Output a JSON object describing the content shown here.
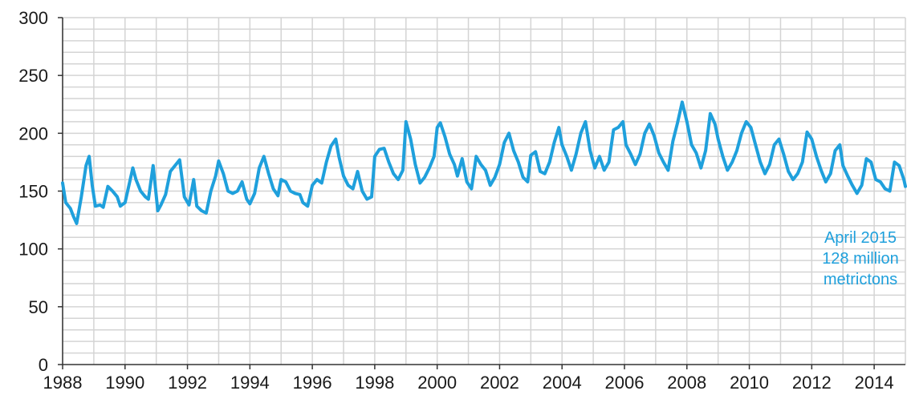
{
  "chart_data": {
    "type": "line",
    "title": "",
    "xlabel": "",
    "ylabel": "",
    "xlim": [
      1988,
      2015.0
    ],
    "ylim": [
      0,
      300
    ],
    "x_tick_labels": [
      "1988",
      "1990",
      "1992",
      "1994",
      "1996",
      "1998",
      "2000",
      "2002",
      "2004",
      "2006",
      "2008",
      "2010",
      "2012",
      "2014"
    ],
    "y_tick_labels": [
      "0",
      "50",
      "100",
      "150",
      "200",
      "250",
      "300"
    ],
    "grid": true,
    "line_color": "#1fa0dc",
    "annotation": [
      "April 2015",
      "128 million",
      "metrictons"
    ],
    "series": [
      {
        "points": [
          [
            1988.0,
            157
          ],
          [
            1988.1,
            140
          ],
          [
            1988.25,
            135
          ],
          [
            1988.35,
            128
          ],
          [
            1988.45,
            122
          ],
          [
            1988.6,
            145
          ],
          [
            1988.75,
            172
          ],
          [
            1988.85,
            180
          ],
          [
            1988.95,
            155
          ],
          [
            1989.05,
            137
          ],
          [
            1989.2,
            138
          ],
          [
            1989.3,
            136
          ],
          [
            1989.45,
            154
          ],
          [
            1989.6,
            150
          ],
          [
            1989.75,
            145
          ],
          [
            1989.85,
            137
          ],
          [
            1990.0,
            140
          ],
          [
            1990.15,
            158
          ],
          [
            1990.25,
            170
          ],
          [
            1990.35,
            160
          ],
          [
            1990.5,
            150
          ],
          [
            1990.65,
            145
          ],
          [
            1990.75,
            143
          ],
          [
            1990.9,
            172
          ],
          [
            1991.05,
            133
          ],
          [
            1991.15,
            138
          ],
          [
            1991.3,
            147
          ],
          [
            1991.45,
            167
          ],
          [
            1991.6,
            172
          ],
          [
            1991.75,
            177
          ],
          [
            1991.9,
            145
          ],
          [
            1992.05,
            138
          ],
          [
            1992.2,
            160
          ],
          [
            1992.3,
            137
          ],
          [
            1992.45,
            133
          ],
          [
            1992.6,
            131
          ],
          [
            1992.75,
            150
          ],
          [
            1992.9,
            163
          ],
          [
            1993.0,
            176
          ],
          [
            1993.15,
            165
          ],
          [
            1993.3,
            150
          ],
          [
            1993.45,
            148
          ],
          [
            1993.6,
            150
          ],
          [
            1993.75,
            158
          ],
          [
            1993.9,
            143
          ],
          [
            1994.0,
            139
          ],
          [
            1994.15,
            148
          ],
          [
            1994.3,
            170
          ],
          [
            1994.45,
            180
          ],
          [
            1994.6,
            165
          ],
          [
            1994.75,
            152
          ],
          [
            1994.9,
            146
          ],
          [
            1995.0,
            160
          ],
          [
            1995.15,
            158
          ],
          [
            1995.3,
            150
          ],
          [
            1995.45,
            148
          ],
          [
            1995.6,
            147
          ],
          [
            1995.7,
            140
          ],
          [
            1995.85,
            137
          ],
          [
            1996.0,
            155
          ],
          [
            1996.15,
            160
          ],
          [
            1996.3,
            157
          ],
          [
            1996.45,
            175
          ],
          [
            1996.6,
            189
          ],
          [
            1996.75,
            195
          ],
          [
            1996.85,
            180
          ],
          [
            1997.0,
            163
          ],
          [
            1997.15,
            155
          ],
          [
            1997.3,
            152
          ],
          [
            1997.45,
            167
          ],
          [
            1997.6,
            150
          ],
          [
            1997.75,
            143
          ],
          [
            1997.9,
            145
          ],
          [
            1998.0,
            180
          ],
          [
            1998.15,
            186
          ],
          [
            1998.3,
            187
          ],
          [
            1998.45,
            175
          ],
          [
            1998.6,
            165
          ],
          [
            1998.75,
            160
          ],
          [
            1998.9,
            168
          ],
          [
            1999.0,
            210
          ],
          [
            1999.15,
            195
          ],
          [
            1999.3,
            173
          ],
          [
            1999.45,
            157
          ],
          [
            1999.6,
            162
          ],
          [
            1999.75,
            170
          ],
          [
            1999.9,
            180
          ],
          [
            2000.0,
            205
          ],
          [
            2000.1,
            209
          ],
          [
            2000.25,
            197
          ],
          [
            2000.4,
            182
          ],
          [
            2000.55,
            173
          ],
          [
            2000.65,
            163
          ],
          [
            2000.8,
            178
          ],
          [
            2000.95,
            158
          ],
          [
            2001.1,
            152
          ],
          [
            2001.25,
            180
          ],
          [
            2001.4,
            173
          ],
          [
            2001.55,
            168
          ],
          [
            2001.7,
            155
          ],
          [
            2001.85,
            162
          ],
          [
            2002.0,
            173
          ],
          [
            2002.15,
            192
          ],
          [
            2002.3,
            200
          ],
          [
            2002.45,
            185
          ],
          [
            2002.6,
            175
          ],
          [
            2002.75,
            162
          ],
          [
            2002.9,
            158
          ],
          [
            2003.0,
            181
          ],
          [
            2003.15,
            184
          ],
          [
            2003.3,
            167
          ],
          [
            2003.45,
            165
          ],
          [
            2003.6,
            175
          ],
          [
            2003.75,
            192
          ],
          [
            2003.9,
            205
          ],
          [
            2004.0,
            190
          ],
          [
            2004.15,
            180
          ],
          [
            2004.3,
            168
          ],
          [
            2004.45,
            182
          ],
          [
            2004.6,
            200
          ],
          [
            2004.75,
            210
          ],
          [
            2004.9,
            185
          ],
          [
            2005.05,
            170
          ],
          [
            2005.2,
            180
          ],
          [
            2005.35,
            168
          ],
          [
            2005.5,
            175
          ],
          [
            2005.65,
            203
          ],
          [
            2005.8,
            205
          ],
          [
            2005.95,
            210
          ],
          [
            2006.05,
            190
          ],
          [
            2006.2,
            182
          ],
          [
            2006.35,
            173
          ],
          [
            2006.5,
            182
          ],
          [
            2006.65,
            200
          ],
          [
            2006.8,
            208
          ],
          [
            2006.95,
            198
          ],
          [
            2007.1,
            183
          ],
          [
            2007.25,
            175
          ],
          [
            2007.4,
            168
          ],
          [
            2007.55,
            193
          ],
          [
            2007.7,
            209
          ],
          [
            2007.85,
            227
          ],
          [
            2008.0,
            210
          ],
          [
            2008.15,
            190
          ],
          [
            2008.3,
            183
          ],
          [
            2008.45,
            170
          ],
          [
            2008.6,
            185
          ],
          [
            2008.75,
            217
          ],
          [
            2008.9,
            208
          ],
          [
            2009.0,
            195
          ],
          [
            2009.15,
            180
          ],
          [
            2009.3,
            168
          ],
          [
            2009.45,
            175
          ],
          [
            2009.6,
            185
          ],
          [
            2009.75,
            200
          ],
          [
            2009.9,
            210
          ],
          [
            2010.05,
            205
          ],
          [
            2010.2,
            190
          ],
          [
            2010.35,
            175
          ],
          [
            2010.5,
            165
          ],
          [
            2010.65,
            173
          ],
          [
            2010.8,
            190
          ],
          [
            2010.95,
            195
          ],
          [
            2011.1,
            182
          ],
          [
            2011.25,
            167
          ],
          [
            2011.4,
            160
          ],
          [
            2011.55,
            165
          ],
          [
            2011.7,
            175
          ],
          [
            2011.85,
            201
          ],
          [
            2012.0,
            195
          ],
          [
            2012.15,
            180
          ],
          [
            2012.3,
            168
          ],
          [
            2012.45,
            158
          ],
          [
            2012.6,
            165
          ],
          [
            2012.75,
            185
          ],
          [
            2012.9,
            190
          ],
          [
            2013.0,
            172
          ],
          [
            2013.15,
            163
          ],
          [
            2013.3,
            155
          ],
          [
            2013.45,
            148
          ],
          [
            2013.6,
            155
          ],
          [
            2013.75,
            178
          ],
          [
            2013.9,
            175
          ],
          [
            2014.05,
            160
          ],
          [
            2014.2,
            158
          ],
          [
            2014.35,
            152
          ],
          [
            2014.5,
            150
          ],
          [
            2014.65,
            175
          ],
          [
            2014.8,
            172
          ],
          [
            2014.95,
            160
          ],
          [
            2015.0,
            154
          ]
        ]
      }
    ]
  }
}
